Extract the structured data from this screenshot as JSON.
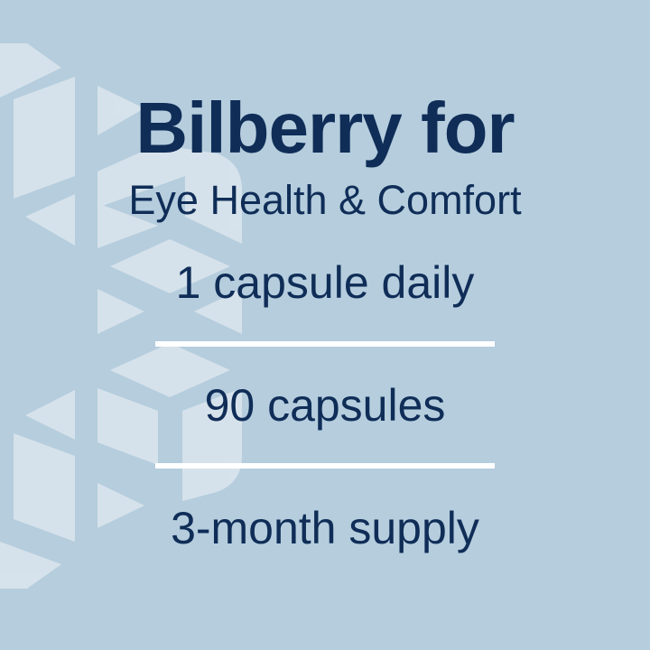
{
  "colors": {
    "background": "#b5cddd",
    "pattern": "#dce6ee",
    "text": "#0f2d57",
    "divider": "#ffffff"
  },
  "title": "Bilberry for",
  "subtitle": "Eye Health & Comfort",
  "details": [
    "1 capsule daily",
    "90 capsules",
    "3-month supply"
  ]
}
